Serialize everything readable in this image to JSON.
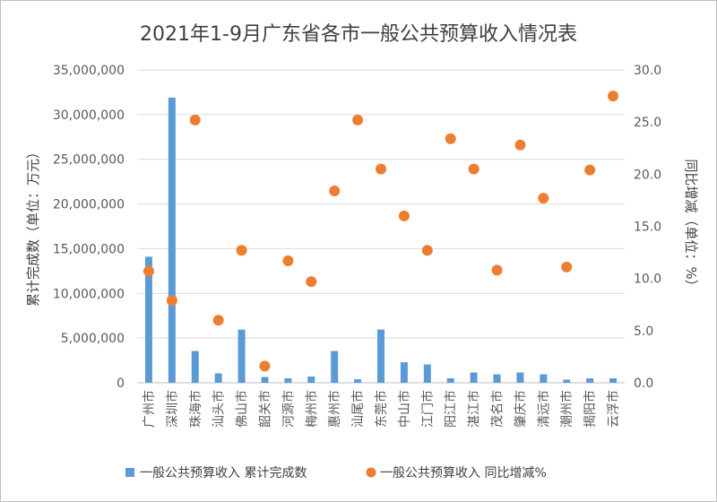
{
  "chart_data": {
    "type": "bar",
    "title": "2021年1-9月广东省各市一般公共预算收入情况表",
    "ylabel": "累计完成数（单位：万元）",
    "y2label": "同比增减（单位：%）",
    "ylim": [
      0,
      35000000
    ],
    "y2lim": [
      0,
      30
    ],
    "yticks": [
      "0",
      "5,000,000",
      "10,000,000",
      "15,000,000",
      "20,000,000",
      "25,000,000",
      "30,000,000",
      "35,000,000"
    ],
    "y2ticks": [
      "0.0",
      "5.0",
      "10.0",
      "15.0",
      "20.0",
      "25.0",
      "30.0"
    ],
    "grid": true,
    "legend_position": "bottom",
    "categories": [
      "广州市",
      "深圳市",
      "珠海市",
      "汕头市",
      "佛山市",
      "韶关市",
      "河源市",
      "梅州市",
      "惠州市",
      "汕尾市",
      "东莞市",
      "中山市",
      "江门市",
      "阳江市",
      "湛江市",
      "茂名市",
      "肇庆市",
      "清远市",
      "潮州市",
      "揭阳市",
      "云浮市"
    ],
    "series": [
      {
        "name": "一般公共预算收入 累计完成数",
        "type": "bar",
        "axis": "left",
        "color": "#5b9bd5",
        "values": [
          14100000,
          31900000,
          3550000,
          1050000,
          5950000,
          650000,
          500000,
          700000,
          3550000,
          400000,
          5950000,
          2300000,
          2050000,
          500000,
          1150000,
          950000,
          1150000,
          950000,
          350000,
          500000,
          500000
        ]
      },
      {
        "name": "一般公共预算收入 同比增减%",
        "type": "scatter",
        "axis": "right",
        "color": "#ed7d31",
        "values": [
          10.7,
          7.9,
          25.2,
          6.0,
          12.7,
          1.6,
          11.7,
          9.7,
          18.4,
          25.2,
          20.5,
          16.0,
          12.7,
          23.4,
          20.5,
          10.8,
          22.8,
          17.7,
          11.1,
          20.4,
          27.5
        ]
      }
    ]
  }
}
